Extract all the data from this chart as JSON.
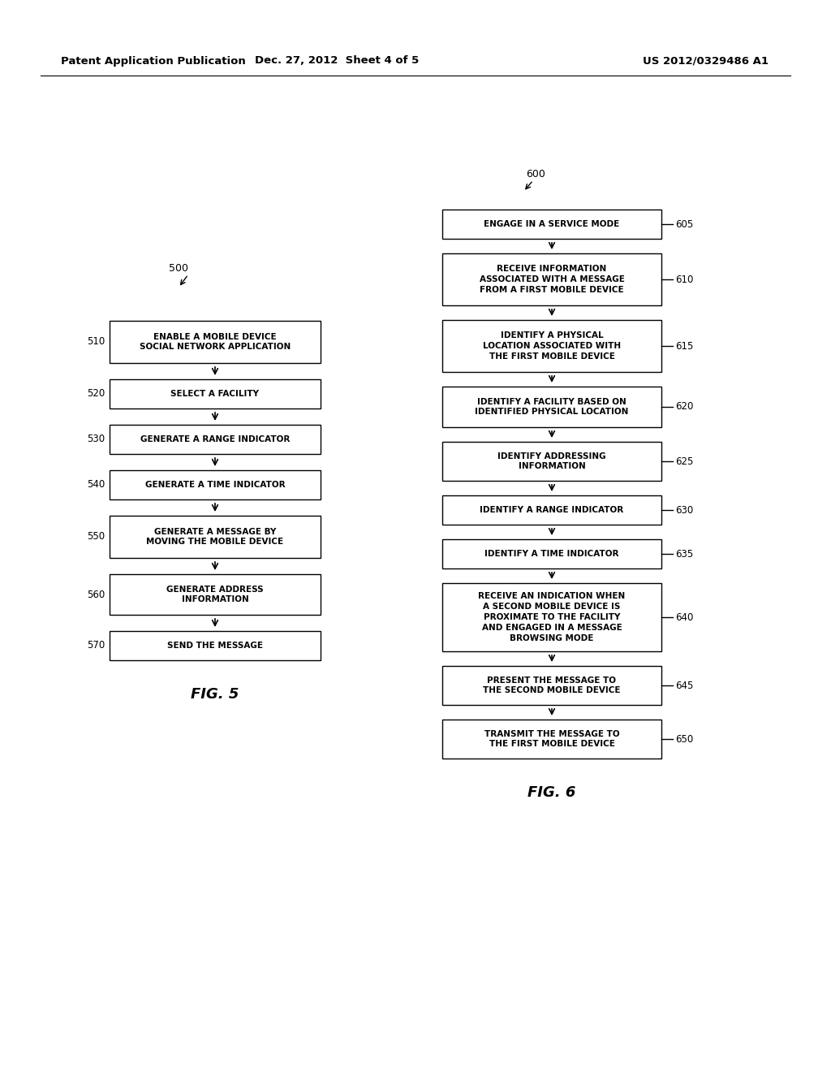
{
  "background_color": "#ffffff",
  "header_left": "Patent Application Publication",
  "header_center": "Dec. 27, 2012  Sheet 4 of 5",
  "header_right": "US 2012/0329486 A1",
  "fig5_label": "500",
  "fig5_caption": "FIG. 5",
  "fig6_label": "600",
  "fig6_caption": "FIG. 6",
  "fig5_boxes": [
    {
      "label": "ENABLE A MOBILE DEVICE\nSOCIAL NETWORK APPLICATION",
      "step": "510"
    },
    {
      "label": "SELECT A FACILITY",
      "step": "520"
    },
    {
      "label": "GENERATE A RANGE INDICATOR",
      "step": "530"
    },
    {
      "label": "GENERATE A TIME INDICATOR",
      "step": "540"
    },
    {
      "label": "GENERATE A MESSAGE BY\nMOVING THE MOBILE DEVICE",
      "step": "550"
    },
    {
      "label": "GENERATE ADDRESS\nINFORMATION",
      "step": "560"
    },
    {
      "label": "SEND THE MESSAGE",
      "step": "570"
    }
  ],
  "fig6_boxes": [
    {
      "label": "ENGAGE IN A SERVICE MODE",
      "step": "605"
    },
    {
      "label": "RECEIVE INFORMATION\nASSOCIATED WITH A MESSAGE\nFROM A FIRST MOBILE DEVICE",
      "step": "610"
    },
    {
      "label": "IDENTIFY A PHYSICAL\nLOCATION ASSOCIATED WITH\nTHE FIRST MOBILE DEVICE",
      "step": "615"
    },
    {
      "label": "IDENTIFY A FACILITY BASED ON\nIDENTIFIED PHYSICAL LOCATION",
      "step": "620"
    },
    {
      "label": "IDENTIFY ADDRESSING\nINFORMATION",
      "step": "625"
    },
    {
      "label": "IDENTIFY A RANGE INDICATOR",
      "step": "630"
    },
    {
      "label": "IDENTIFY A TIME INDICATOR",
      "step": "635"
    },
    {
      "label": "RECEIVE AN INDICATION WHEN\nA SECOND MOBILE DEVICE IS\nPROXIMATE TO THE FACILITY\nAND ENGAGED IN A MESSAGE\nBROWSING MODE",
      "step": "640"
    },
    {
      "label": "PRESENT THE MESSAGE TO\nTHE SECOND MOBILE DEVICE",
      "step": "645"
    },
    {
      "label": "TRANSMIT THE MESSAGE TO\nTHE FIRST MOBILE DEVICE",
      "step": "650"
    }
  ],
  "box_color": "#ffffff",
  "box_edge_color": "#000000",
  "text_color": "#000000",
  "arrow_color": "#000000"
}
